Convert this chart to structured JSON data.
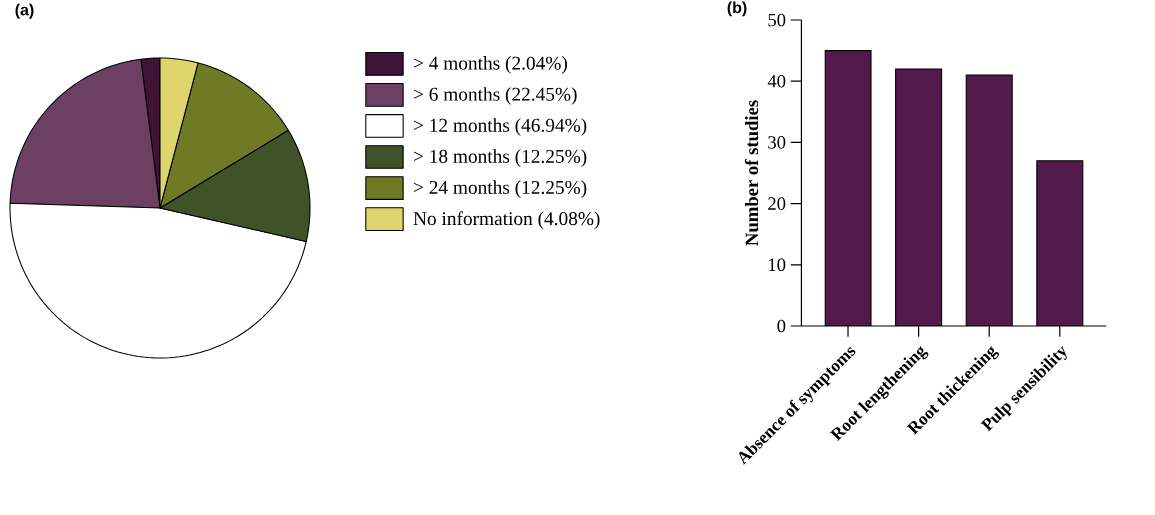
{
  "chart_data": [
    {
      "type": "pie",
      "title": "(a)",
      "legend": "right",
      "categories": [
        "> 4 months (2.04%)",
        "> 6 months (22.45%)",
        "> 12 months (46.94%)",
        "> 18 months (12.25%)",
        "> 24 months (12.25%)",
        "No information (4.08%)"
      ],
      "values": [
        2.04,
        22.45,
        46.94,
        12.25,
        12.25,
        4.08
      ],
      "colors": [
        "#3f1238",
        "#6b4063",
        "#ffffff",
        "#3f5228",
        "#6e7a26",
        "#ded56d"
      ]
    },
    {
      "type": "bar",
      "title": "(b)",
      "ylabel": "Number of studies",
      "categories": [
        "Absence of symptoms",
        "Root lengthening",
        "Root thickening",
        "Pulp sensibility"
      ],
      "values": [
        45,
        42,
        41,
        27
      ],
      "color": "#521a4a",
      "ylim": [
        0,
        50
      ],
      "yticks": [
        0,
        10,
        20,
        30,
        40,
        50
      ],
      "grid": false
    }
  ]
}
